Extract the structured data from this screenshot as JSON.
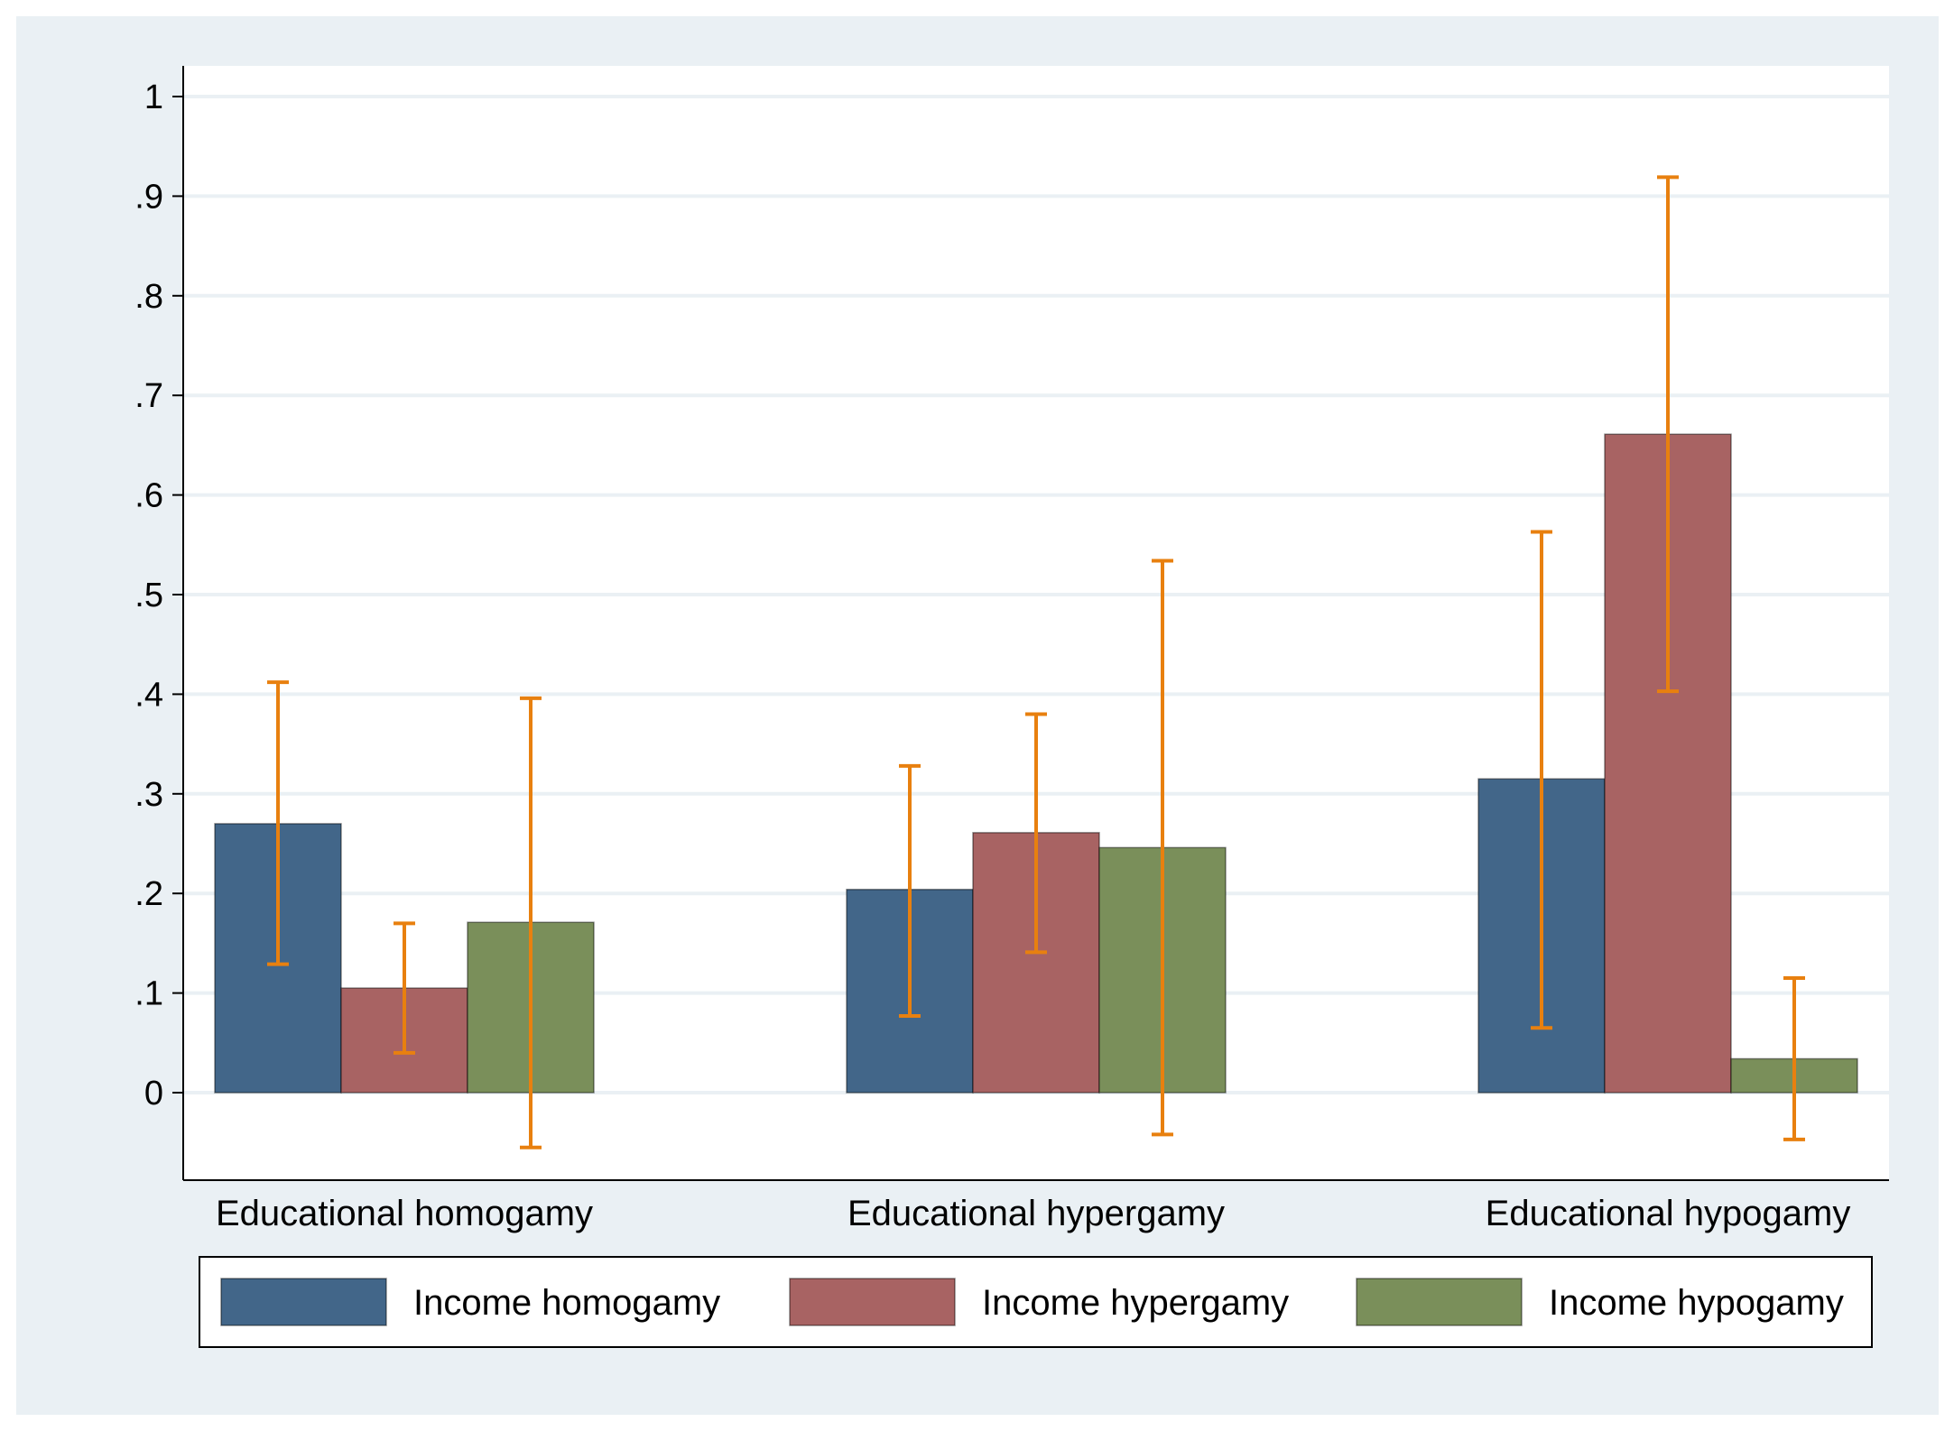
{
  "chart_data": {
    "type": "bar",
    "title": "",
    "xlabel": "",
    "ylabel": "",
    "ylim": [
      -0.09,
      1.03
    ],
    "yticks": [
      0,
      0.1,
      0.2,
      0.3,
      0.4,
      0.5,
      0.6,
      0.7,
      0.8,
      0.9,
      1
    ],
    "ytick_labels": [
      "0",
      ".1",
      ".2",
      ".3",
      ".4",
      ".5",
      ".6",
      ".7",
      ".8",
      ".9",
      "1"
    ],
    "grid": true,
    "legend_position": "bottom",
    "categories": [
      "Educational homogamy",
      "Educational hypergamy",
      "Educational hypogamy"
    ],
    "series": [
      {
        "name": "Income homogamy",
        "color": "#426689",
        "values": [
          0.27,
          0.204,
          0.315
        ],
        "ci_low": [
          0.129,
          0.077,
          0.065
        ],
        "ci_high": [
          0.412,
          0.328,
          0.563
        ]
      },
      {
        "name": "Income hypergamy",
        "color": "#a86363",
        "values": [
          0.105,
          0.261,
          0.661
        ],
        "ci_low": [
          0.04,
          0.141,
          0.403
        ],
        "ci_high": [
          0.17,
          0.38,
          0.919
        ]
      },
      {
        "name": "Income hypogamy",
        "color": "#7a8f5a",
        "values": [
          0.171,
          0.246,
          0.034
        ],
        "ci_low": [
          -0.055,
          -0.042,
          -0.047
        ],
        "ci_high": [
          0.396,
          0.534,
          0.115
        ]
      }
    ],
    "error_bar_color": "#e8800f"
  }
}
